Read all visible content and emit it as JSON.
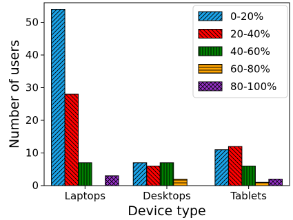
{
  "chart_data": {
    "type": "bar",
    "categories": [
      "Laptops",
      "Desktops",
      "Tablets"
    ],
    "series": [
      {
        "name": "0-20%",
        "values": [
          54,
          7,
          11
        ],
        "color": "#1aa3e8",
        "pattern": "diagonal-forward"
      },
      {
        "name": "20-40%",
        "values": [
          28,
          6,
          12
        ],
        "color": "#ff0000",
        "pattern": "diagonal-back"
      },
      {
        "name": "40-60%",
        "values": [
          7,
          7,
          6
        ],
        "color": "#008000",
        "pattern": "vertical"
      },
      {
        "name": "60-80%",
        "values": [
          0,
          2,
          1
        ],
        "color": "#ffa500",
        "pattern": "horizontal"
      },
      {
        "name": "80-100%",
        "values": [
          3,
          0,
          2
        ],
        "color": "#9932cc",
        "pattern": "crosshatch"
      }
    ],
    "xlabel": "Device type",
    "ylabel": "Number of users",
    "ylim": [
      0,
      56
    ],
    "yticks": [
      0,
      10,
      20,
      30,
      40,
      50
    ],
    "legend_position": "top-right",
    "grid": false
  }
}
